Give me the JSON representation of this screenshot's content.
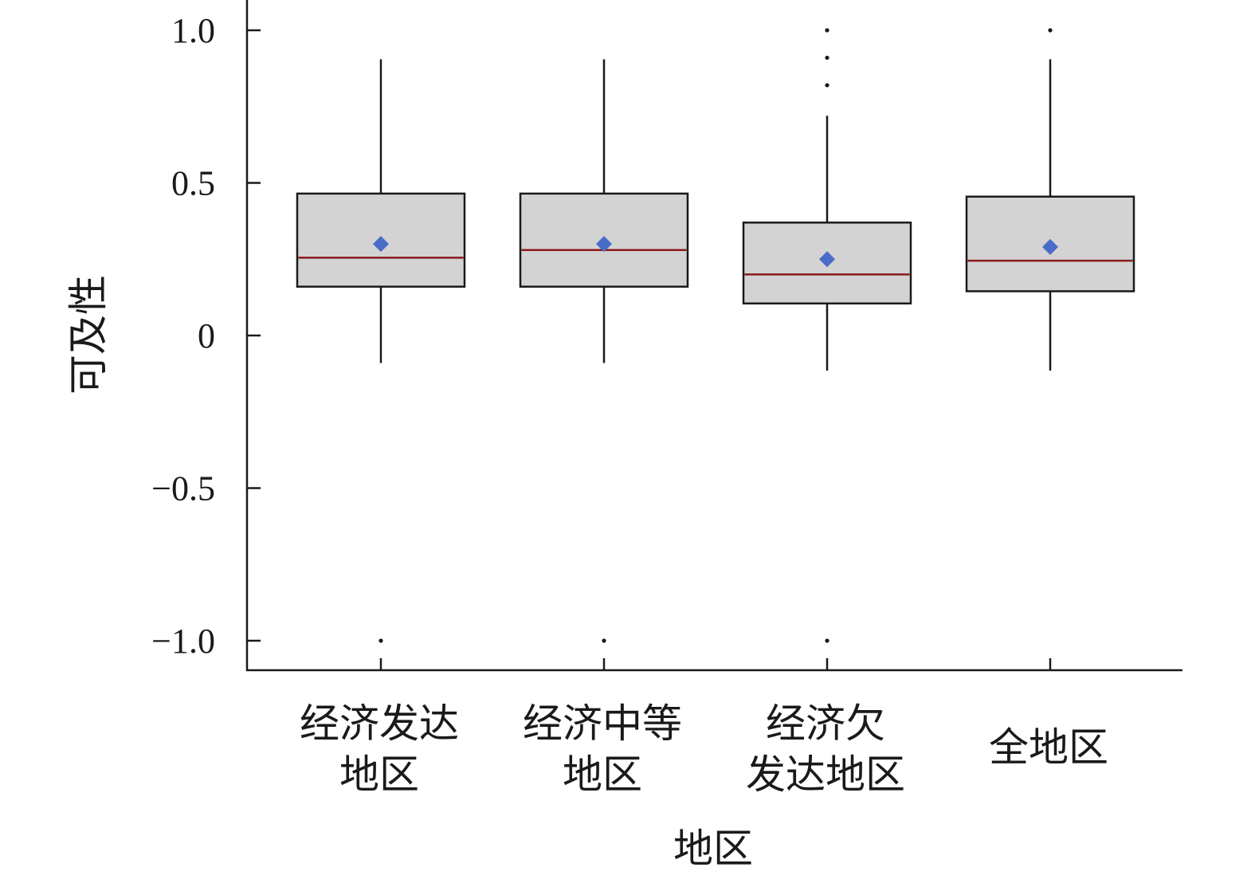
{
  "chart_data": {
    "type": "box",
    "xlabel": "地区",
    "ylabel": "可及性",
    "ylim": [
      -1.1,
      1.1
    ],
    "yticks": [
      1.0,
      0.5,
      0,
      -0.5,
      -1.0
    ],
    "ytick_labels": [
      "1.0",
      "0.5",
      "0",
      "−0.5",
      "−1.0"
    ],
    "colors": {
      "box_fill": "#d3d3d3",
      "box_edge": "#1a1a1a",
      "median": "#8b1a1a",
      "mean_marker": "#4a6bc8"
    },
    "categories": [
      {
        "label_lines": [
          "经济发达",
          "地区"
        ],
        "whisker_low": -0.09,
        "q1": 0.16,
        "median": 0.255,
        "q3": 0.465,
        "whisker_high": 0.905,
        "mean": 0.3,
        "outliers": [
          -1.0
        ]
      },
      {
        "label_lines": [
          "经济中等",
          "地区"
        ],
        "whisker_low": -0.09,
        "q1": 0.16,
        "median": 0.28,
        "q3": 0.465,
        "whisker_high": 0.905,
        "mean": 0.3,
        "outliers": [
          -1.0
        ]
      },
      {
        "label_lines": [
          "经济欠",
          "发达地区"
        ],
        "whisker_low": -0.115,
        "q1": 0.105,
        "median": 0.2,
        "q3": 0.37,
        "whisker_high": 0.72,
        "mean": 0.25,
        "outliers": [
          1.0,
          0.91,
          0.82,
          -1.0
        ]
      },
      {
        "label_lines": [
          "全地区"
        ],
        "whisker_low": -0.115,
        "q1": 0.145,
        "median": 0.245,
        "q3": 0.455,
        "whisker_high": 0.905,
        "mean": 0.29,
        "outliers": [
          1.0
        ]
      }
    ]
  }
}
